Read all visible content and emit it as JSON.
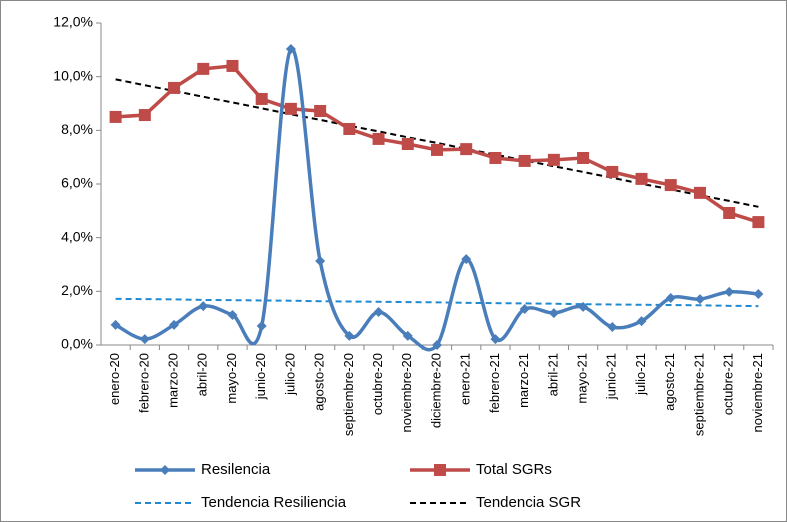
{
  "chart_data": {
    "type": "line",
    "categories": [
      "enero-20",
      "febrero-20",
      "marzo-20",
      "abril-20",
      "mayo-20",
      "junio-20",
      "julio-20",
      "agosto-20",
      "septiembre-20",
      "octubre-20",
      "noviembre-20",
      "diciembre-20",
      "enero-21",
      "febrero-21",
      "marzo-21",
      "abril-21",
      "mayo-21",
      "junio-21",
      "julio-21",
      "agosto-21",
      "septiembre-21",
      "octubre-21",
      "noviembre-21"
    ],
    "series": [
      {
        "name": "Resilencia",
        "color": "#4a7ebb",
        "marker": "diamond",
        "smooth": true,
        "values": [
          0.75,
          0.22,
          0.75,
          1.45,
          1.12,
          0.71,
          11.03,
          3.13,
          0.34,
          1.23,
          0.34,
          0.0,
          3.2,
          0.22,
          1.34,
          1.19,
          1.42,
          0.67,
          0.89,
          1.75,
          1.71,
          1.98,
          1.9
        ]
      },
      {
        "name": "Total SGRs",
        "color": "#be4b48",
        "marker": "square",
        "values": [
          8.5,
          8.57,
          9.58,
          10.29,
          10.4,
          9.17,
          8.8,
          8.72,
          8.05,
          7.68,
          7.49,
          7.27,
          7.3,
          6.97,
          6.86,
          6.9,
          6.97,
          6.45,
          6.19,
          5.96,
          5.67,
          4.92,
          4.58
        ]
      },
      {
        "name": "Tendencia Resiliencia",
        "color": "#1f8ad0",
        "dash": true,
        "values": [
          1.72,
          1.71,
          1.7,
          1.68,
          1.67,
          1.66,
          1.65,
          1.63,
          1.62,
          1.61,
          1.6,
          1.59,
          1.57,
          1.56,
          1.55,
          1.54,
          1.52,
          1.51,
          1.5,
          1.49,
          1.48,
          1.46,
          1.45
        ]
      },
      {
        "name": "Tendencia SGR",
        "color": "#000000",
        "dash": true,
        "values": [
          9.9,
          9.68,
          9.47,
          9.25,
          9.04,
          8.82,
          8.6,
          8.39,
          8.17,
          7.96,
          7.74,
          7.53,
          7.31,
          7.09,
          6.88,
          6.66,
          6.45,
          6.23,
          6.01,
          5.8,
          5.58,
          5.37,
          5.15
        ]
      }
    ],
    "ylim": [
      0,
      12
    ],
    "yticks": [
      {
        "value": 0,
        "label": "0,0%"
      },
      {
        "value": 2,
        "label": "2,0%"
      },
      {
        "value": 4,
        "label": "4,0%"
      },
      {
        "value": 6,
        "label": "6,0%"
      },
      {
        "value": 8,
        "label": "8,0%"
      },
      {
        "value": 10,
        "label": "10,0%"
      },
      {
        "value": 12,
        "label": "12,0%"
      }
    ],
    "grid": false,
    "legend": "bottom"
  }
}
